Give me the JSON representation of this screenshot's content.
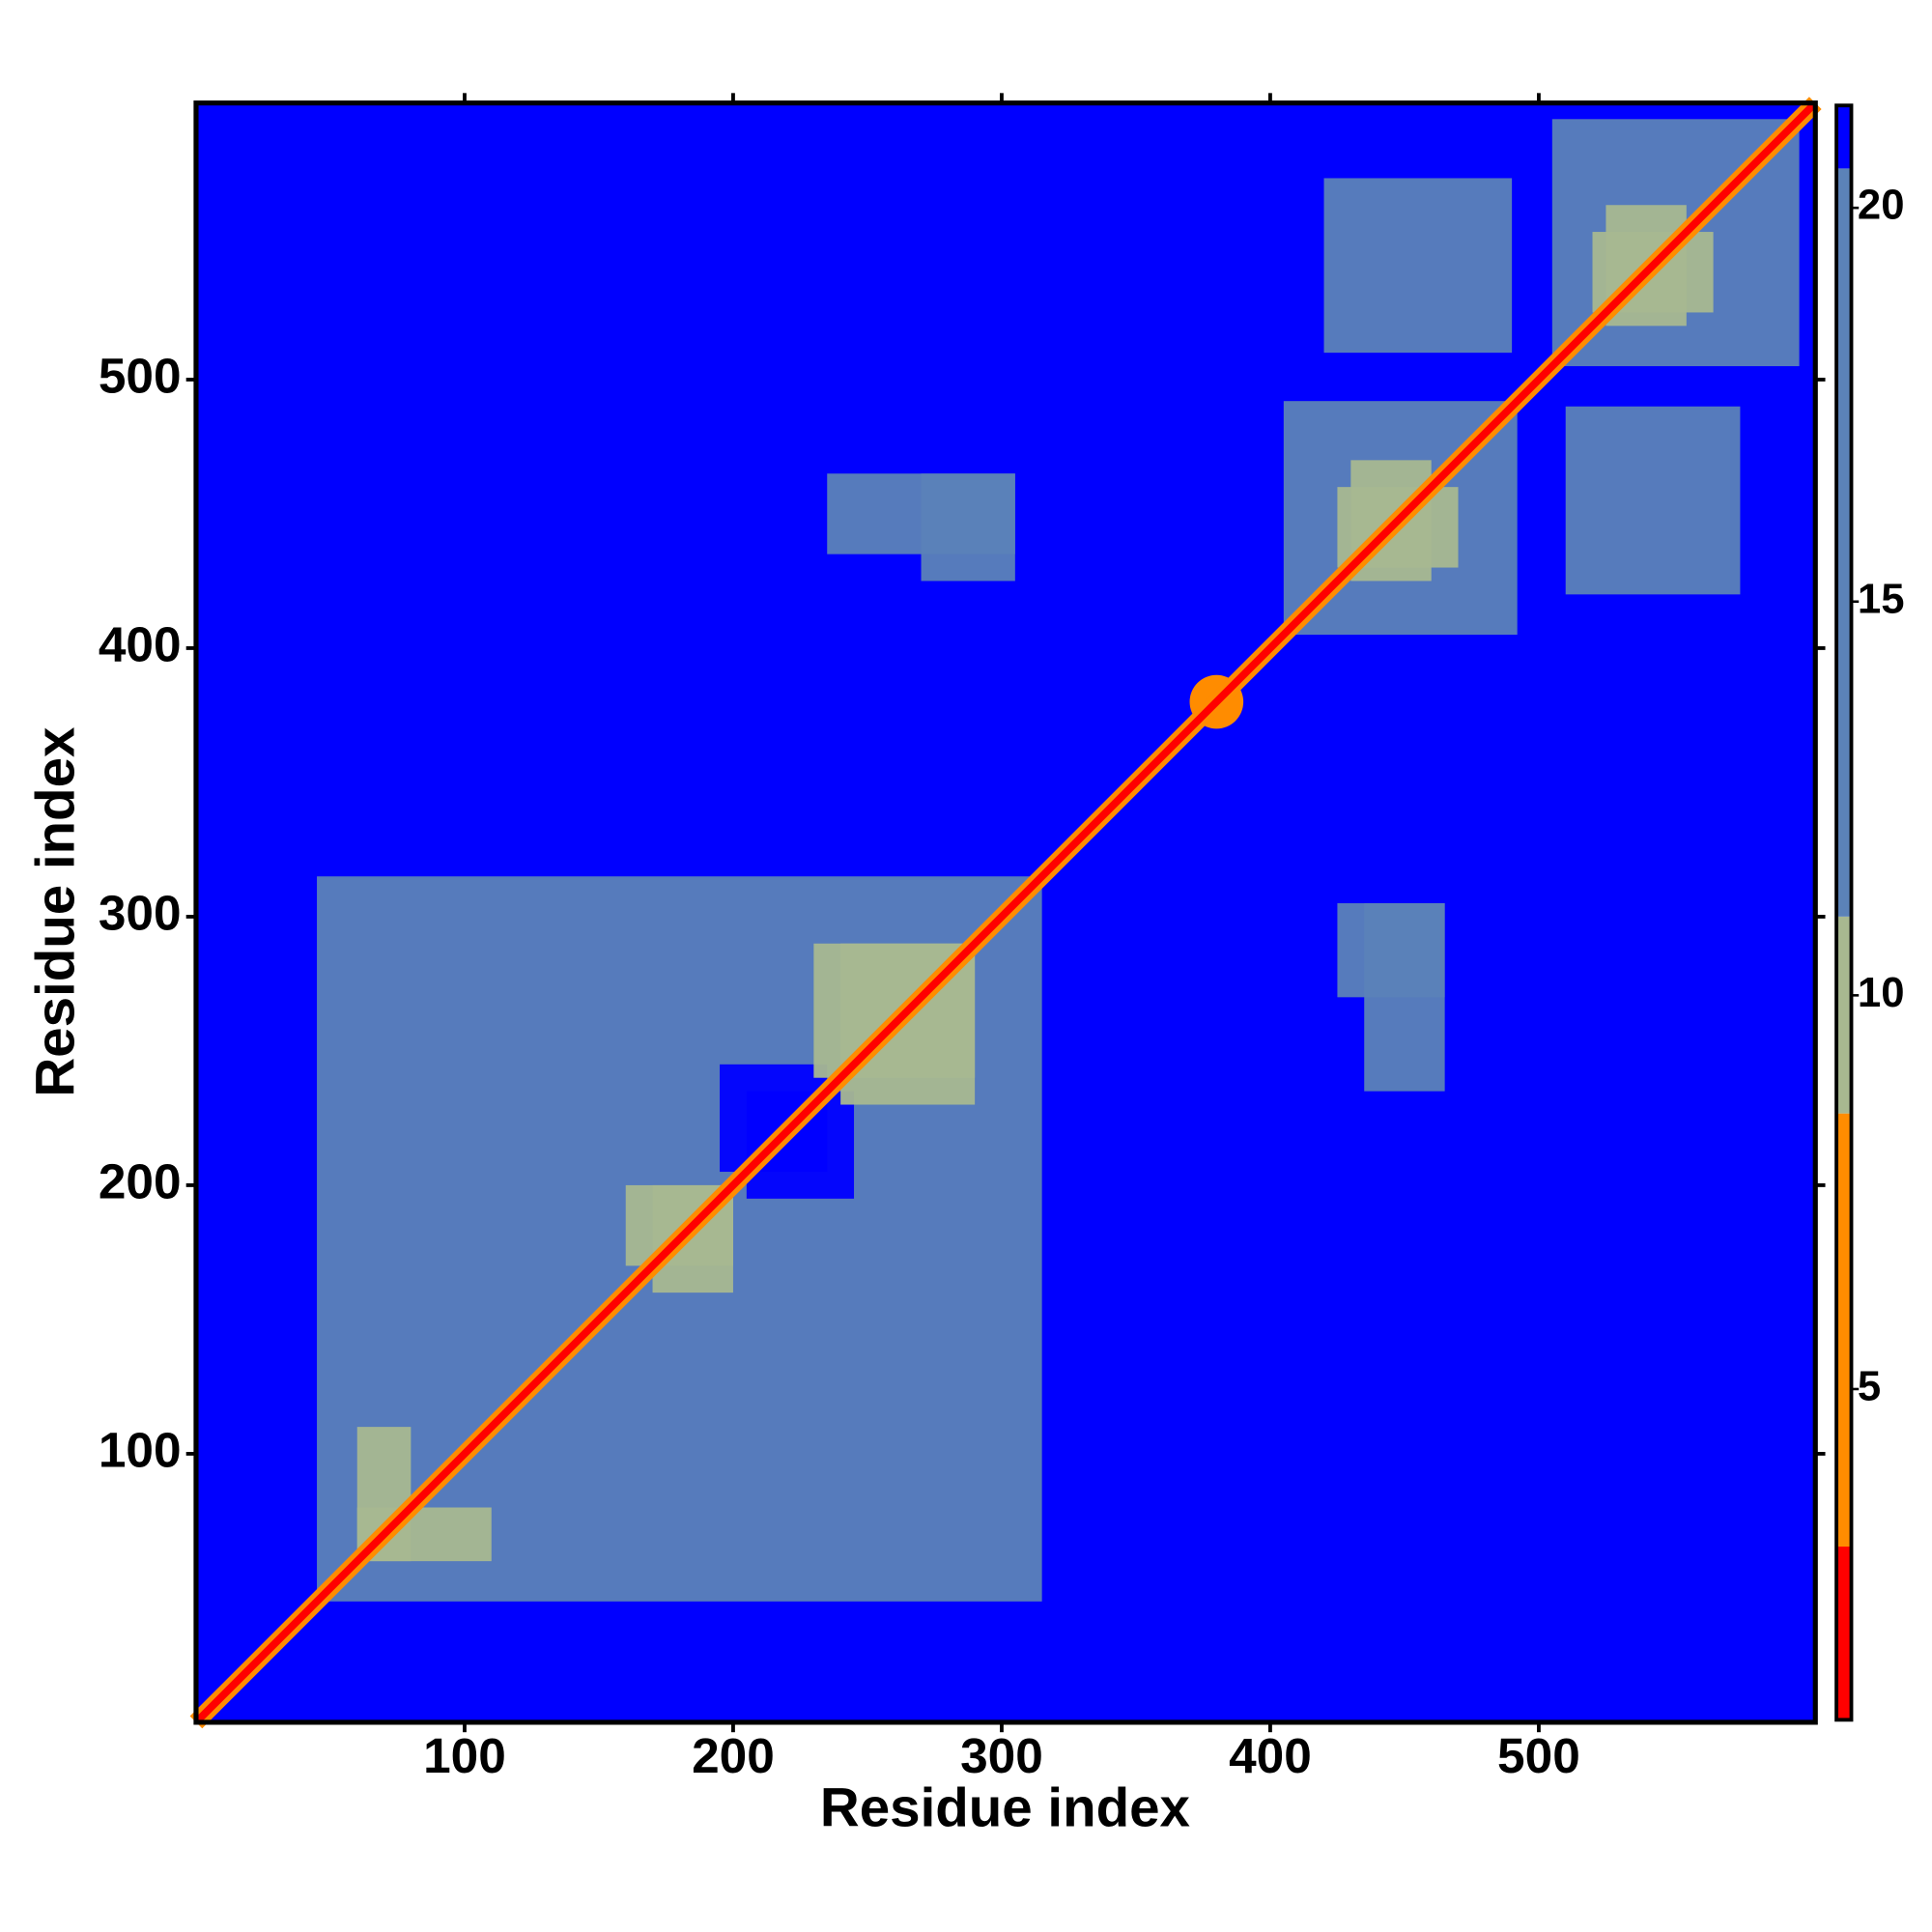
{
  "chart_data": {
    "type": "heatmap",
    "x_label": "Residue index",
    "y_label": "Residue index",
    "xlim": [
      0,
      603
    ],
    "ylim": [
      0,
      603
    ],
    "xticks": [
      100,
      200,
      300,
      400,
      500
    ],
    "yticks": [
      100,
      200,
      300,
      400,
      500
    ],
    "symmetric": true,
    "background_value": 21,
    "diagonal_halo_value": 6,
    "diagonal_value": 2,
    "blocks": [
      {
        "x": [
          45,
          315
        ],
        "y": [
          45,
          315
        ],
        "value": 17
      },
      {
        "x": [
          405,
          492
        ],
        "y": [
          405,
          492
        ],
        "value": 17
      },
      {
        "x": [
          505,
          597
        ],
        "y": [
          505,
          597
        ],
        "value": 17
      },
      {
        "x": [
          420,
          490
        ],
        "y": [
          510,
          575
        ],
        "value": 19
      },
      {
        "x": [
          235,
          305
        ],
        "y": [
          435,
          465
        ],
        "value": 19
      },
      {
        "x": [
          425,
          465
        ],
        "y": [
          270,
          305
        ],
        "value": 19
      },
      {
        "x": [
          205,
          245
        ],
        "y": [
          195,
          235
        ],
        "value": 21
      },
      {
        "x": [
          60,
          110
        ],
        "y": [
          60,
          80
        ],
        "value": 10
      },
      {
        "x": [
          160,
          200
        ],
        "y": [
          170,
          200
        ],
        "value": 10
      },
      {
        "x": [
          230,
          290
        ],
        "y": [
          240,
          290
        ],
        "value": 10
      },
      {
        "x": [
          425,
          470
        ],
        "y": [
          430,
          460
        ],
        "value": 10
      },
      {
        "x": [
          520,
          565
        ],
        "y": [
          525,
          555
        ],
        "value": 10
      }
    ],
    "spots": [
      {
        "x": 380,
        "y": 380,
        "r": 10,
        "value": 8
      }
    ],
    "colorbar_lim": [
      0.8,
      21.3
    ],
    "colorbar_ticks": [
      5,
      10,
      15,
      20
    ],
    "colorscale": [
      {
        "value": 3,
        "color": "#ff0000"
      },
      {
        "value": 8.5,
        "color": "#ff8c00"
      },
      {
        "value": 11,
        "color": "#a8b890"
      },
      {
        "value": 20.5,
        "color": "#5b82b8"
      },
      {
        "value": 21.3,
        "color": "#0000ff"
      }
    ]
  }
}
